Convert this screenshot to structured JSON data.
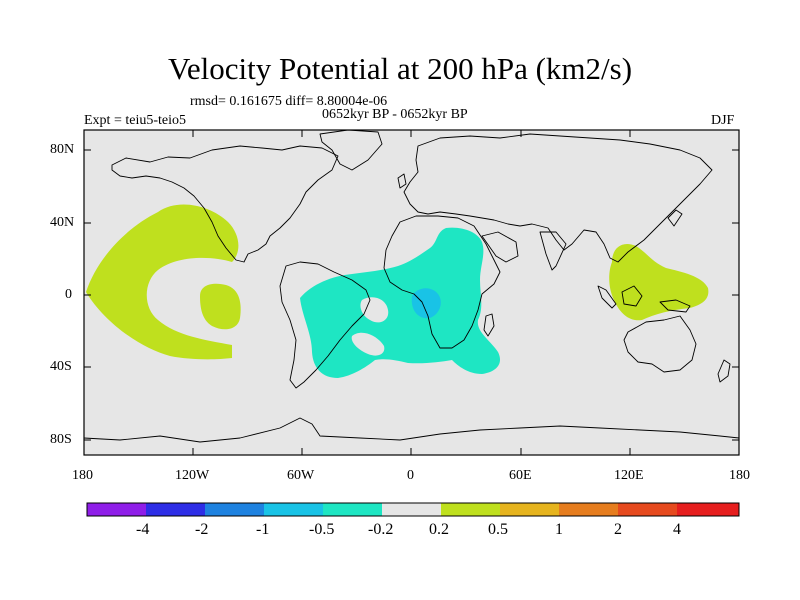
{
  "title": "Velocity Potential at 200 hPa (km2/s)",
  "stats_line": "rmsd= 0.161675 diff= 8.80004e-06",
  "period_line": "0652kyr BP - 0652kyr BP",
  "experiment": "Expt = teiu5-teio5",
  "season": "DJF",
  "lat_labels": [
    "80N",
    "40N",
    "0",
    "40S",
    "80S"
  ],
  "lon_labels": [
    "180",
    "120W",
    "60W",
    "0",
    "60E",
    "120E",
    "180"
  ],
  "colorbar": {
    "colors": [
      "#8f1ee8",
      "#2e2ee6",
      "#1e82e0",
      "#19c3e6",
      "#1ee6c3",
      "#e6e6e6",
      "#bfe01e",
      "#e6b41e",
      "#e67d1e",
      "#e64a1e",
      "#e61e1e"
    ],
    "labels": [
      "-4",
      "-2",
      "-1",
      "-0.5",
      "-0.2",
      "0.2",
      "0.5",
      "1",
      "2",
      "4"
    ]
  },
  "chart_data": {
    "type": "contour-map",
    "variable": "velocity potential difference at 200 hPa",
    "units": "km2/s",
    "lon_range": [
      -180,
      180
    ],
    "lat_range": [
      -90,
      90
    ],
    "levels": [
      -4,
      -2,
      -1,
      -0.5,
      -0.2,
      0.2,
      0.5,
      1,
      2,
      4
    ],
    "regions": [
      {
        "name": "central-pacific",
        "range": "0.2 to 0.5",
        "lon": [
          -170,
          -90
        ],
        "lat": [
          -30,
          40
        ],
        "shape": "crescent open to the east"
      },
      {
        "name": "maritime-continent",
        "range": "0.2 to 0.5",
        "lon": [
          115,
          165
        ],
        "lat": [
          -10,
          20
        ]
      },
      {
        "name": "south-america-africa",
        "range": "-0.5 to -0.2",
        "lon": [
          -55,
          50
        ],
        "lat": [
          -40,
          35
        ]
      },
      {
        "name": "congo",
        "range": "-1 to -0.5",
        "lon": [
          0,
          20
        ],
        "lat": [
          -10,
          5
        ]
      }
    ]
  }
}
